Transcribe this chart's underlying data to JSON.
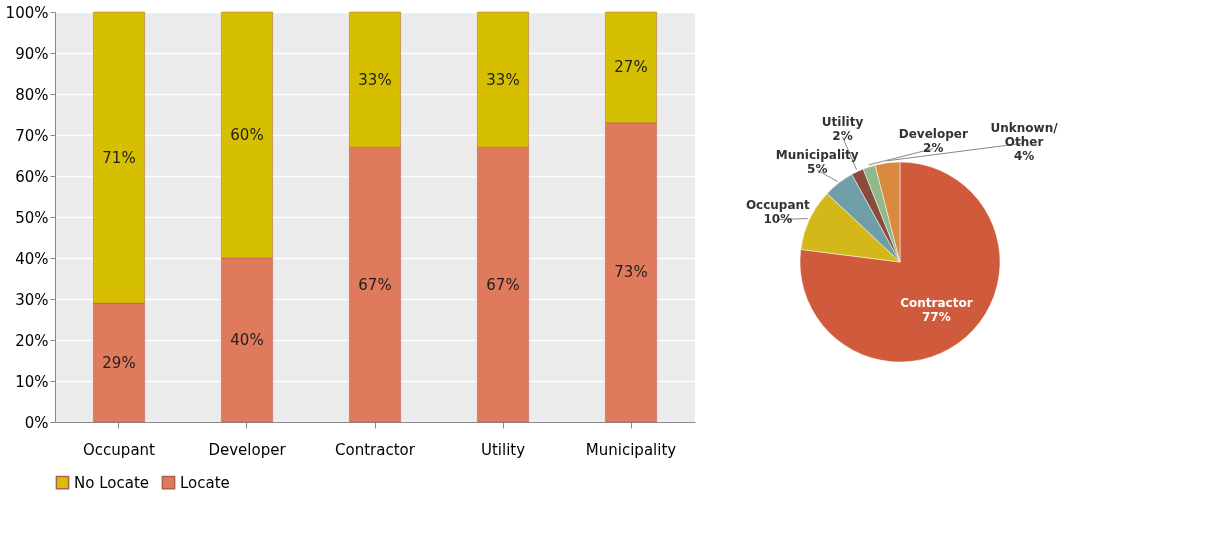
{
  "chart_data": [
    {
      "type": "bar",
      "stacked": true,
      "categories": [
        "Occupant",
        "Developer",
        "Contractor",
        "Utility",
        "Municipality"
      ],
      "series": [
        {
          "name": "Locate",
          "color": "#e07a5c",
          "values": [
            29,
            40,
            67,
            67,
            73
          ],
          "value_labels": [
            "29%",
            "40%",
            "67%",
            "67%",
            "73%"
          ]
        },
        {
          "name": "No Locate",
          "color": "#d6bf00",
          "values": [
            71,
            60,
            33,
            33,
            27
          ],
          "value_labels": [
            "71%",
            "60%",
            "33%",
            "33%",
            "27%"
          ]
        }
      ],
      "ylim": [
        0,
        100
      ],
      "yticks": [
        {
          "value": 0,
          "label": "0%"
        },
        {
          "value": 10,
          "label": "10%"
        },
        {
          "value": 20,
          "label": "20%"
        },
        {
          "value": 30,
          "label": "30%"
        },
        {
          "value": 40,
          "label": "40%"
        },
        {
          "value": 50,
          "label": "50%"
        },
        {
          "value": 60,
          "label": "60%"
        },
        {
          "value": 70,
          "label": "70%"
        },
        {
          "value": 80,
          "label": "80%"
        },
        {
          "value": 90,
          "label": "90%"
        },
        {
          "value": 100,
          "label": "100%"
        }
      ],
      "grid": "y",
      "legend": "bottom"
    },
    {
      "type": "pie",
      "categories": [
        "Contractor",
        "Occupant",
        "Municipality",
        "Utility",
        "Developer",
        "Unknown/\nOther"
      ],
      "values": [
        77,
        10,
        5,
        2,
        2,
        4
      ],
      "value_labels": [
        "77%",
        "10%",
        "5%",
        "2%",
        "2%",
        "4%"
      ],
      "colors": [
        "#cf5a3c",
        "#d4b81a",
        "#6f9ea6",
        "#8a4a3c",
        "#8fb88c",
        "#d98a3e"
      ]
    }
  ]
}
